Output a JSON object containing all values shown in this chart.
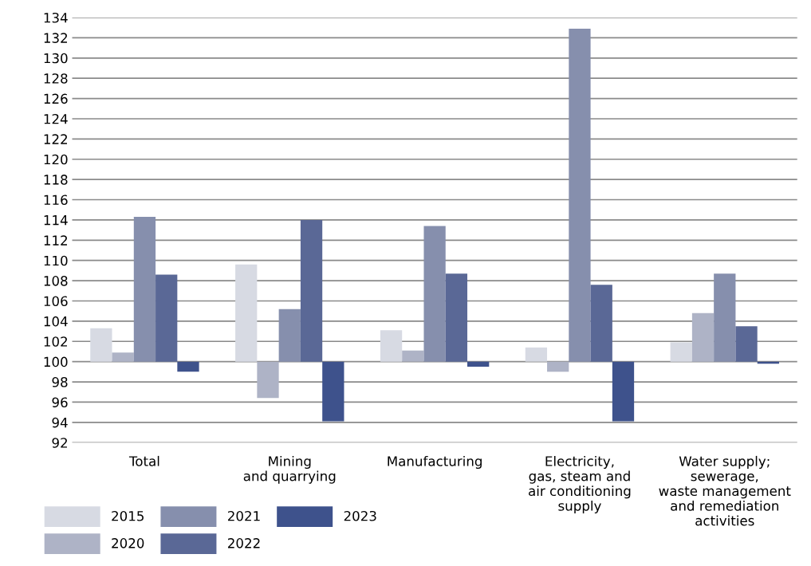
{
  "chart_data": {
    "type": "bar",
    "categories": [
      "Total",
      "Mining\nand quarrying",
      "Manufacturing",
      "Electricity,\ngas, steam and\nair conditioning\nsupply",
      "Water supply;\nsewerage,\nwaste management\nand remediation\nactivities"
    ],
    "series": [
      {
        "name": "2015",
        "color": "#d7dae3",
        "base": [
          100,
          100,
          100,
          100,
          100
        ],
        "values": [
          3.3,
          9.6,
          3.1,
          1.4,
          1.9
        ]
      },
      {
        "name": "2020",
        "color": "#aeb3c6",
        "base": [
          100,
          100,
          100,
          100,
          100
        ],
        "values": [
          0.9,
          -3.6,
          1.1,
          -1.0,
          4.8
        ]
      },
      {
        "name": "2021",
        "color": "#868fad",
        "base": [
          100,
          100,
          100,
          100,
          100
        ],
        "values": [
          14.3,
          5.2,
          13.4,
          32.9,
          8.7
        ]
      },
      {
        "name": "2022",
        "color": "#5a6896",
        "base": [
          100,
          100,
          100,
          100,
          100
        ],
        "values": [
          8.6,
          14.0,
          8.7,
          7.6,
          3.5
        ]
      },
      {
        "name": "2023",
        "color": "#3e528c",
        "base": [
          100,
          100,
          100,
          100,
          100
        ],
        "values": [
          -1.0,
          -5.9,
          -0.5,
          -5.9,
          -0.2
        ]
      }
    ],
    "ylim": [
      92,
      134
    ],
    "yticks": [
      92,
      94,
      96,
      98,
      100,
      102,
      104,
      106,
      108,
      110,
      112,
      114,
      116,
      118,
      120,
      122,
      124,
      126,
      128,
      130,
      132,
      134
    ],
    "grid": "y",
    "legend": "bottom left"
  }
}
